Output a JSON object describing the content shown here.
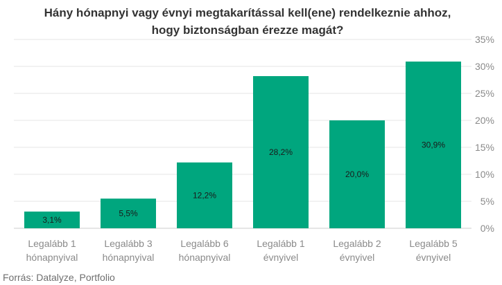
{
  "chart_data": {
    "type": "bar",
    "title_lines": [
      "Hány hónapnyi vagy évnyi megtakarítással kell(ene) rendelkeznie ahhoz,",
      "hogy biztonságban érezze magát?"
    ],
    "categories": [
      [
        "Legalább 1",
        "hónapnyival"
      ],
      [
        "Legalább 3",
        "hónapnyival"
      ],
      [
        "Legalább 6",
        "hónapnyival"
      ],
      [
        "Legalább 1",
        "évnyivel"
      ],
      [
        "Legalább 2",
        "évnyivel"
      ],
      [
        "Legalább 5",
        "évnyivel"
      ]
    ],
    "values": [
      3.1,
      5.5,
      12.2,
      28.2,
      20.0,
      30.9
    ],
    "data_labels": [
      "3,1%",
      "5,5%",
      "12,2%",
      "28,2%",
      "20,0%",
      "30,9%"
    ],
    "ylim": [
      0,
      35
    ],
    "yticks": [
      0,
      5,
      10,
      15,
      20,
      25,
      30,
      35
    ],
    "ytick_labels": [
      "0%",
      "5%",
      "10%",
      "15%",
      "20%",
      "25%",
      "30%",
      "35%"
    ],
    "y_axis_side": "right",
    "grid": true,
    "bar_color": "#00a67e",
    "source": "Forrás: Datalyze, Portfolio"
  }
}
